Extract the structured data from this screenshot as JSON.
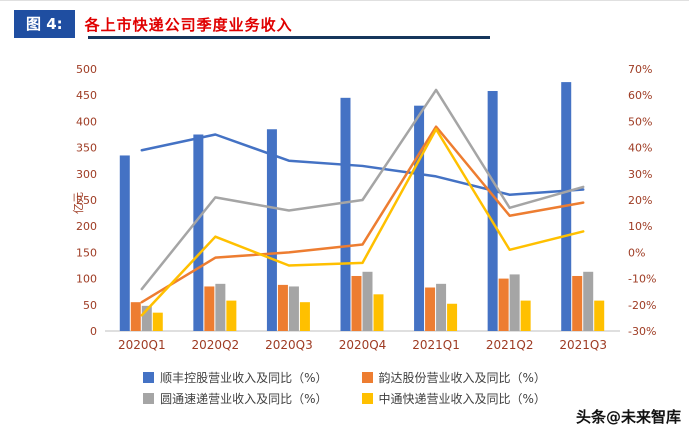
{
  "header": {
    "figure_label": "图 4:",
    "title": "各上市快递公司季度业务收入"
  },
  "watermark": "头条@未来智库",
  "colors": {
    "badge_blue": "#1F4EA1",
    "title_red": "#E00000",
    "underline_navy": "#16365C",
    "axis_text": "#9E3B23",
    "axis_line": "#BFBFBF",
    "legend_text": "#404040",
    "sf_blue": "#4472C4",
    "yunda_orange": "#ED7D31",
    "yto_gray": "#A5A5A5",
    "zto_yellow": "#FFC000"
  },
  "chart_data": {
    "type": "combo",
    "title": "各上市快递公司季度业务收入",
    "categories": [
      "2020Q1",
      "2020Q2",
      "2020Q3",
      "2020Q4",
      "2021Q1",
      "2021Q2",
      "2021Q3"
    ],
    "left_axis": {
      "label": "亿元",
      "min": 0,
      "max": 500,
      "step": 50
    },
    "right_axis": {
      "label": "",
      "min": -30,
      "max": 70,
      "step": 10,
      "format": "percent"
    },
    "grid": false,
    "legend_position": "bottom",
    "bar_series": [
      {
        "name": "顺丰控股营业收入",
        "color": "#4472C4",
        "values": [
          335,
          375,
          385,
          445,
          430,
          458,
          475
        ]
      },
      {
        "name": "韵达股份营业收入",
        "color": "#ED7D31",
        "values": [
          55,
          85,
          88,
          105,
          83,
          100,
          105
        ]
      },
      {
        "name": "圆通速递营业收入",
        "color": "#A5A5A5",
        "values": [
          48,
          90,
          85,
          113,
          90,
          108,
          113
        ]
      },
      {
        "name": "中通快递营业收入",
        "color": "#FFC000",
        "values": [
          35,
          58,
          55,
          70,
          52,
          58,
          58
        ]
      }
    ],
    "line_series": [
      {
        "name": "顺丰控股同比(%)",
        "color": "#4472C4",
        "values": [
          39,
          45,
          35,
          33,
          29,
          22,
          24
        ]
      },
      {
        "name": "韵达股份同比(%)",
        "color": "#ED7D31",
        "values": [
          -19,
          -2,
          0,
          3,
          48,
          14,
          19
        ]
      },
      {
        "name": "圆通速递同比(%)",
        "color": "#A5A5A5",
        "values": [
          -14,
          21,
          16,
          20,
          62,
          17,
          25
        ]
      },
      {
        "name": "中通快递同比(%)",
        "color": "#FFC000",
        "values": [
          -24,
          6,
          -5,
          -4,
          47,
          1,
          8
        ]
      }
    ],
    "legend": [
      {
        "label": "顺丰控股营业收入及同比（%）",
        "color": "#4472C4"
      },
      {
        "label": "韵达股份营业收入及同比（%）",
        "color": "#ED7D31"
      },
      {
        "label": "圆通速递营业收入及同比（%）",
        "color": "#A5A5A5"
      },
      {
        "label": "中通快递营业收入及同比（%）",
        "color": "#FFC000"
      }
    ]
  }
}
